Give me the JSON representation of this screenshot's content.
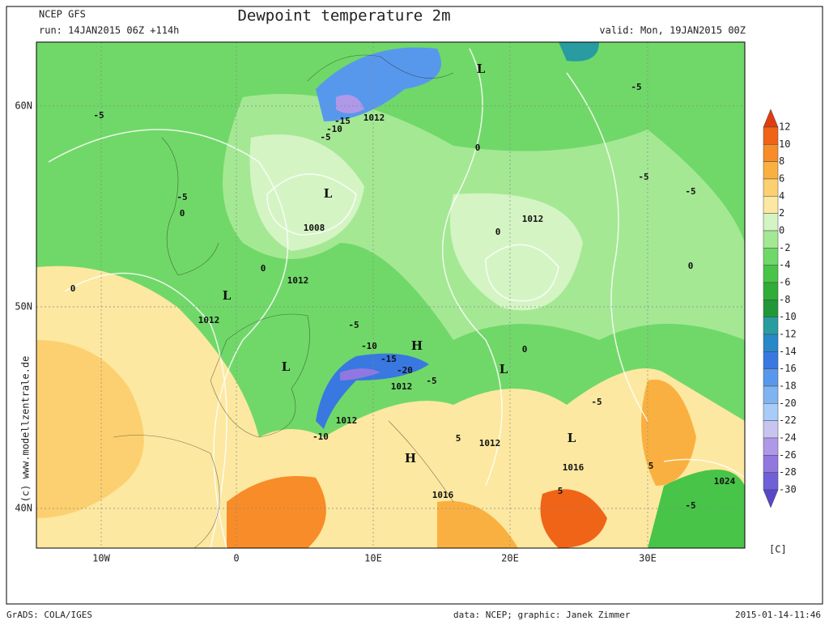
{
  "header": {
    "model": "NCEP GFS",
    "run": "run: 14JAN2015 06Z +114h",
    "title": "Dewpoint temperature 2m",
    "valid": "valid: Mon, 19JAN2015 00Z"
  },
  "axes": {
    "lat": [
      "60N",
      "50N",
      "40N"
    ],
    "lon": [
      "10W",
      "0",
      "10E",
      "20E",
      "30E"
    ]
  },
  "colorbar": {
    "levels": [
      12,
      10,
      8,
      6,
      4,
      2,
      0,
      -2,
      -4,
      -6,
      -8,
      -10,
      -12,
      -14,
      -16,
      -18,
      -20,
      -22,
      -24,
      -26,
      -28,
      -30
    ],
    "colors": [
      "#e03c10",
      "#f06418",
      "#f88c28",
      "#fab040",
      "#fcd070",
      "#fce8a0",
      "#d4f4c4",
      "#a4e894",
      "#70d868",
      "#48c448",
      "#30ac38",
      "#209838",
      "#289ca0",
      "#2888c8",
      "#3878e0",
      "#5898ec",
      "#80b4f0",
      "#a8ccf8",
      "#c8c4f0",
      "#b098e8",
      "#9078e0",
      "#7060d8",
      "#5848c8"
    ],
    "unit": "[C]"
  },
  "map_labels": [
    "L",
    "L",
    "1008",
    "1012",
    "-15",
    "-10",
    "-5",
    "-5",
    "0",
    "-5",
    "0",
    "1012",
    "-5",
    "-5",
    "-5",
    "0",
    "0",
    "0",
    "0",
    "1012",
    "L",
    "1012",
    "-5",
    "-10",
    "H",
    "-15",
    "-20",
    "-5",
    "1012",
    "L",
    "L",
    "0",
    "-5",
    "1012",
    "-10",
    "5",
    "1012",
    "L",
    "H",
    "5",
    "1016",
    "1024",
    "1016",
    "5",
    "-5"
  ],
  "watermark": "(c) www.modellzentrale.de",
  "footer": {
    "left": "GrADS: COLA/IGES",
    "center": "data: NCEP; graphic: Janek Zimmer",
    "right": "2015-01-14-11:46"
  }
}
